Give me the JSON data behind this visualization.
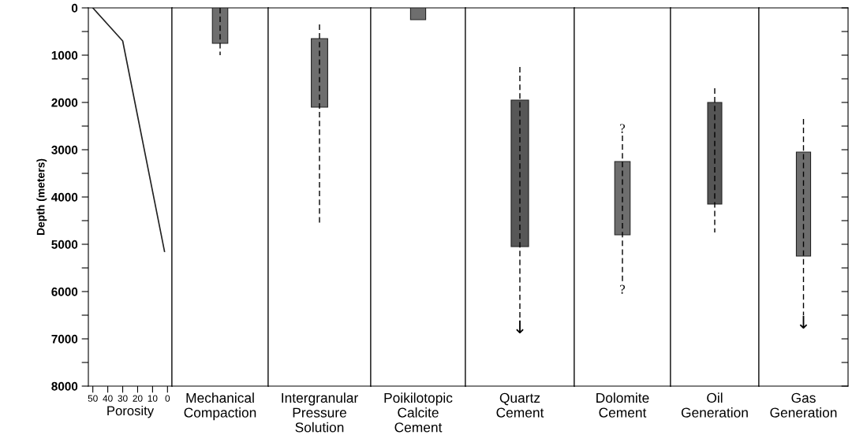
{
  "chart_data": [
    {
      "type": "line",
      "x": [
        50,
        30,
        2
      ],
      "values": [
        0,
        700,
        5150
      ],
      "color": "#222222",
      "xlabel": "Porosity",
      "ylabel": "Depth (meters)",
      "xlim": [
        53,
        -3
      ],
      "xticks": [
        50,
        40,
        30,
        20,
        10,
        0
      ],
      "ylim": [
        8000,
        0
      ],
      "yticks": [
        0,
        {
          "value": 500,
          "label": null
        },
        1000,
        {
          "value": 1500,
          "label": null
        },
        2000,
        {
          "value": 2500,
          "label": null
        },
        3000,
        {
          "value": 3500,
          "label": null
        },
        4000,
        {
          "value": 4500,
          "label": null
        },
        5000,
        {
          "value": 5500,
          "label": null
        },
        6000,
        {
          "value": 6500,
          "label": null
        },
        7000,
        {
          "value": 7500,
          "label": null
        },
        8000
      ],
      "marker": "none"
    },
    {
      "type": "bar",
      "categories": [
        "Mechanical\nCompaction"
      ],
      "base": [
        0
      ],
      "values": [
        750
      ],
      "errors": [
        [
          0,
          1000
        ]
      ],
      "color": "#6e6e6e",
      "ylim": [
        8000,
        0
      ],
      "yticks": [
        0,
        1000,
        2000,
        3000,
        4000,
        5000,
        6000,
        7000,
        8000
      ],
      "tick_labels": "x"
    },
    {
      "type": "bar",
      "categories": [
        "Intergranular\nPressure\nSolution"
      ],
      "base": [
        650
      ],
      "values": [
        1450
      ],
      "errors": [
        [
          350,
          4550
        ]
      ],
      "color": "#6e6e6e",
      "ylim": [
        8000,
        0
      ],
      "yticks": [
        0,
        1000,
        2000,
        3000,
        4000,
        5000,
        6000,
        7000,
        8000
      ],
      "tick_labels": "x"
    },
    {
      "type": "bar",
      "categories": [
        "Poikilotopic\nCalcite\nCement"
      ],
      "base": [
        0
      ],
      "values": [
        250
      ],
      "color": "#6e6e6e",
      "ylim": [
        8000,
        0
      ],
      "yticks": [
        0,
        1000,
        2000,
        3000,
        4000,
        5000,
        6000,
        7000,
        8000
      ],
      "tick_labels": "x"
    },
    {
      "type": "bar",
      "categories": [
        "Quartz\nCement"
      ],
      "base": [
        1950
      ],
      "values": [
        3100
      ],
      "errors": [
        [
          1250,
          6600
        ]
      ],
      "color": "#575757",
      "ylim": [
        8000,
        0
      ],
      "yticks": [
        0,
        1000,
        2000,
        3000,
        4000,
        5000,
        6000,
        7000,
        8000
      ],
      "tick_labels": "x",
      "annotations": [
        "↓"
      ]
    },
    {
      "type": "bar",
      "categories": [
        "Dolomite\nCement"
      ],
      "base": [
        3250
      ],
      "values": [
        1550
      ],
      "errors": [
        [
          2700,
          5850
        ]
      ],
      "color": "#6e6e6e",
      "ylim": [
        8000,
        0
      ],
      "yticks": [
        0,
        1000,
        2000,
        3000,
        4000,
        5000,
        6000,
        7000,
        8000
      ],
      "tick_labels": "x",
      "annotations": [
        "?",
        "?"
      ]
    },
    {
      "type": "bar",
      "categories": [
        "Oil\nGeneration"
      ],
      "base": [
        2000
      ],
      "values": [
        2150
      ],
      "errors": [
        [
          1700,
          4750
        ]
      ],
      "color": "#555555",
      "ylim": [
        8000,
        0
      ],
      "yticks": [
        0,
        1000,
        2000,
        3000,
        4000,
        5000,
        6000,
        7000,
        8000
      ],
      "tick_labels": "x"
    },
    {
      "type": "bar",
      "categories": [
        "Gas\nGeneration"
      ],
      "base": [
        3050
      ],
      "values": [
        2200
      ],
      "errors": [
        [
          2350,
          6500
        ]
      ],
      "color": "#6e6e6e",
      "ylim": [
        8000,
        0
      ],
      "yticks": [
        0,
        {
          "value": 500,
          "label": null
        },
        1000,
        {
          "value": 1500,
          "label": null
        },
        2000,
        {
          "value": 2500,
          "label": null
        },
        3000,
        {
          "value": 3500,
          "label": null
        },
        4000,
        {
          "value": 4500,
          "label": null
        },
        5000,
        {
          "value": 5500,
          "label": null
        },
        6000,
        {
          "value": 6500,
          "label": null
        },
        7000,
        {
          "value": 7500,
          "label": null
        },
        8000
      ],
      "tick_labels": "x",
      "annotations": [
        "↓"
      ]
    }
  ]
}
